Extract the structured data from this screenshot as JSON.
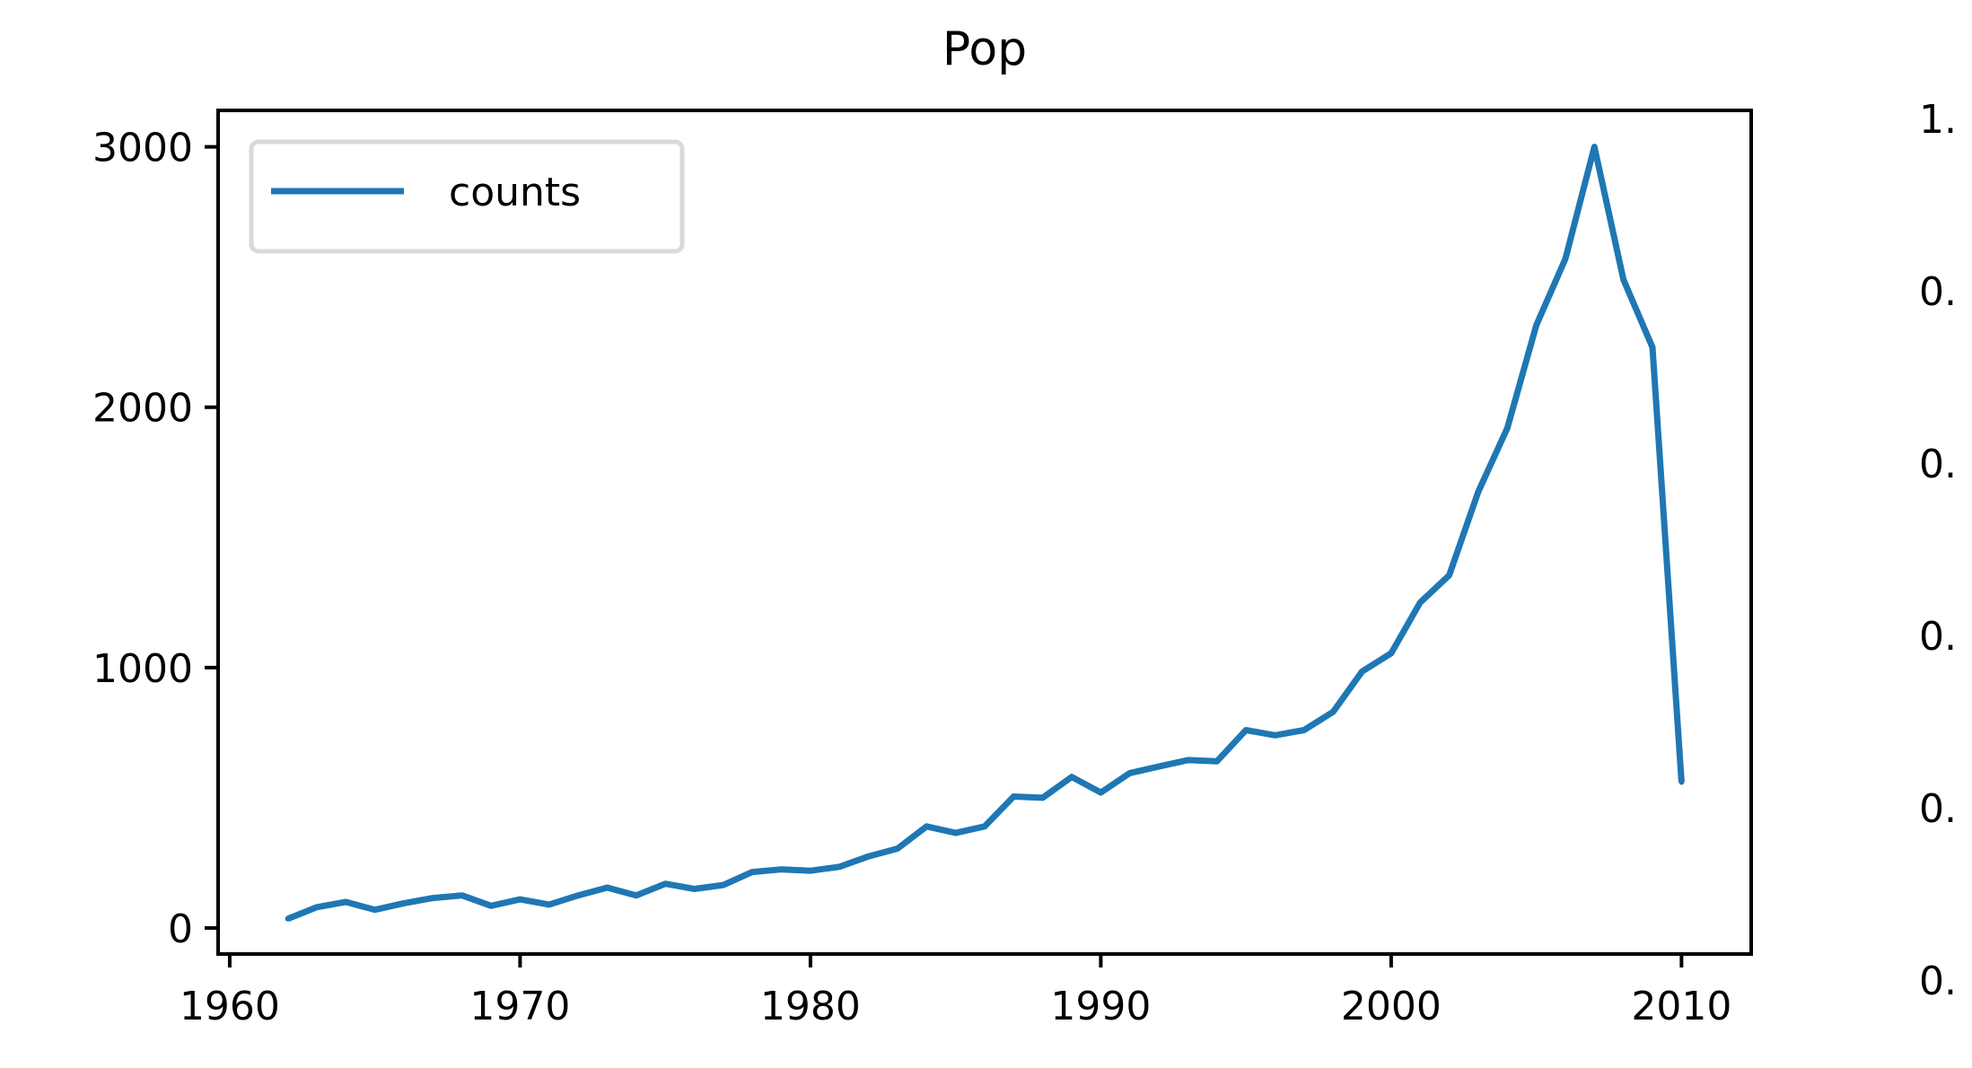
{
  "chart_data": [
    {
      "type": "line",
      "title": "Pop",
      "xlabel": "",
      "ylabel": "",
      "xlim": [
        1959.6,
        2012.4
      ],
      "ylim": [
        -100,
        3140
      ],
      "xticks": [
        1960,
        1970,
        1980,
        1990,
        2000,
        2010
      ],
      "xtick_labels": [
        "1960",
        "1970",
        "1980",
        "1990",
        "2000",
        "2010"
      ],
      "yticks": [
        0,
        1000,
        2000,
        3000
      ],
      "ytick_labels": [
        "0",
        "1000",
        "2000",
        "3000"
      ],
      "legend": {
        "placement": "upper-left",
        "entries": [
          "counts"
        ]
      },
      "grid": false,
      "colors": {
        "series": "#1f77b4",
        "axes": "#000000",
        "legend_border": "#d9d9d9"
      },
      "series": [
        {
          "name": "counts",
          "x": [
            1962,
            1963,
            1964,
            1965,
            1966,
            1967,
            1968,
            1969,
            1970,
            1971,
            1972,
            1973,
            1974,
            1975,
            1976,
            1977,
            1978,
            1979,
            1980,
            1981,
            1982,
            1983,
            1984,
            1985,
            1986,
            1987,
            1988,
            1989,
            1990,
            1991,
            1992,
            1993,
            1994,
            1995,
            1996,
            1997,
            1998,
            1999,
            2000,
            2001,
            2002,
            2003,
            2004,
            2005,
            2006,
            2007,
            2008,
            2009,
            2010
          ],
          "values": [
            35,
            80,
            100,
            70,
            95,
            115,
            125,
            85,
            110,
            90,
            125,
            155,
            125,
            170,
            150,
            165,
            215,
            225,
            220,
            235,
            275,
            305,
            390,
            365,
            390,
            505,
            500,
            580,
            520,
            595,
            620,
            645,
            640,
            760,
            740,
            760,
            830,
            985,
            1055,
            1250,
            1355,
            1675,
            1920,
            2315,
            2570,
            3000,
            2490,
            2230,
            560
          ]
        }
      ]
    },
    {
      "type": "line",
      "title": "",
      "ytick_labels": [
        "1.",
        "0.",
        "0.",
        "0.",
        "0.",
        "0."
      ]
    }
  ]
}
